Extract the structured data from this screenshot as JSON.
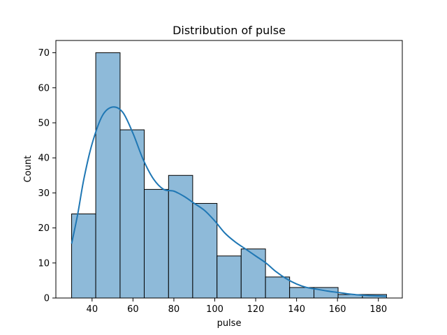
{
  "chart_data": {
    "type": "bar",
    "title": "Distribution of pulse",
    "xlabel": "pulse",
    "ylabel": "Count",
    "xlim": [
      22.3,
      191.7
    ],
    "ylim": [
      0,
      73.5
    ],
    "x_ticks": [
      40,
      60,
      80,
      100,
      120,
      140,
      160,
      180
    ],
    "y_ticks": [
      0,
      10,
      20,
      30,
      40,
      50,
      60,
      70
    ],
    "grid": false,
    "legend": "none",
    "bins": [
      {
        "start": 30.0,
        "end": 41.8,
        "count": 24
      },
      {
        "start": 41.8,
        "end": 53.7,
        "count": 70
      },
      {
        "start": 53.7,
        "end": 65.5,
        "count": 48
      },
      {
        "start": 65.5,
        "end": 77.4,
        "count": 31
      },
      {
        "start": 77.4,
        "end": 89.2,
        "count": 35
      },
      {
        "start": 89.2,
        "end": 101.1,
        "count": 27
      },
      {
        "start": 101.1,
        "end": 112.9,
        "count": 12
      },
      {
        "start": 112.9,
        "end": 124.8,
        "count": 14
      },
      {
        "start": 124.8,
        "end": 136.6,
        "count": 6
      },
      {
        "start": 136.6,
        "end": 148.5,
        "count": 3
      },
      {
        "start": 148.5,
        "end": 160.3,
        "count": 3
      },
      {
        "start": 160.3,
        "end": 172.2,
        "count": 1
      },
      {
        "start": 172.2,
        "end": 184.0,
        "count": 1
      }
    ],
    "kde": {
      "x": [
        30,
        33,
        36,
        40,
        45,
        50,
        55,
        60,
        65,
        70,
        75,
        80,
        85,
        90,
        95,
        100,
        105,
        110,
        115,
        120,
        125,
        130,
        135,
        140,
        145,
        150,
        155,
        160,
        165,
        170,
        175,
        180,
        184
      ],
      "y": [
        15.5,
        24,
        34,
        44,
        52,
        54.5,
        53,
        47,
        39.5,
        34,
        31,
        30.5,
        29,
        27,
        25,
        22,
        18.5,
        16,
        14,
        12,
        10,
        7.5,
        5.5,
        4,
        3,
        2.5,
        2,
        1.6,
        1.2,
        0.9,
        0.7,
        0.6,
        0.5
      ]
    },
    "colors": {
      "bar_fill": "#8ebad9",
      "bar_edge": "#000000",
      "kde_line": "#1f77b4",
      "axes": "#000000"
    }
  }
}
